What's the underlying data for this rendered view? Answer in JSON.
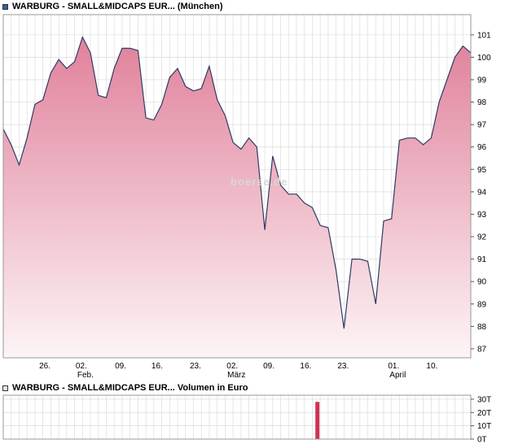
{
  "watermark": "boerse.de",
  "chart_data": [
    {
      "type": "area",
      "title": "WARBURG - SMALL&MIDCAPS EUR... (München)",
      "ylim": [
        86.6,
        101.9
      ],
      "grid": true,
      "legend_position": "top-left",
      "yticks": [
        {
          "v": 87,
          "label": "87"
        },
        {
          "v": 88,
          "label": "88"
        },
        {
          "v": 89,
          "label": "89"
        },
        {
          "v": 90,
          "label": "90"
        },
        {
          "v": 91,
          "label": "91"
        },
        {
          "v": 92,
          "label": "92"
        },
        {
          "v": 93,
          "label": "93"
        },
        {
          "v": 94,
          "label": "94"
        },
        {
          "v": 95,
          "label": "95"
        },
        {
          "v": 96,
          "label": "96"
        },
        {
          "v": 97,
          "label": "97"
        },
        {
          "v": 98,
          "label": "98"
        },
        {
          "v": 99,
          "label": "99"
        },
        {
          "v": 100,
          "label": "100"
        },
        {
          "v": 101,
          "label": "101"
        }
      ],
      "xticks": [
        {
          "pos": 0.089,
          "label": "26."
        },
        {
          "pos": 0.167,
          "label": "02.",
          "sub": "Feb."
        },
        {
          "pos": 0.251,
          "label": "09."
        },
        {
          "pos": 0.329,
          "label": "16."
        },
        {
          "pos": 0.411,
          "label": "23."
        },
        {
          "pos": 0.49,
          "label": "02.",
          "sub": "März"
        },
        {
          "pos": 0.568,
          "label": "09."
        },
        {
          "pos": 0.647,
          "label": "16."
        },
        {
          "pos": 0.727,
          "label": "23."
        },
        {
          "pos": 0.835,
          "label": "01.",
          "sub": "April"
        },
        {
          "pos": 0.917,
          "label": "10."
        }
      ],
      "series": [
        {
          "name": "WARBURG - SMALL&MIDCAPS EUR... (München)",
          "values": [
            96.8,
            96.1,
            95.2,
            96.4,
            97.9,
            98.1,
            99.3,
            99.9,
            99.5,
            99.8,
            100.9,
            100.2,
            98.3,
            98.2,
            99.5,
            100.4,
            100.4,
            100.3,
            97.3,
            97.2,
            97.9,
            99.1,
            99.5,
            98.7,
            98.5,
            98.6,
            99.6,
            98.1,
            97.4,
            96.2,
            95.9,
            96.4,
            96.0,
            92.3,
            95.6,
            94.3,
            93.9,
            93.9,
            93.5,
            93.3,
            92.5,
            92.4,
            90.5,
            87.9,
            91.0,
            91.0,
            90.9,
            89.0,
            92.7,
            92.8,
            96.3,
            96.4,
            96.4,
            96.1,
            96.4,
            98.0,
            99.0,
            100.0,
            100.5,
            100.2
          ]
        }
      ],
      "colors": {
        "swatch": "#2e62a8",
        "line": "#2f3b63",
        "fill_top": "#e0819b",
        "fill_bottom": "#fdf4f6",
        "grid": "#dcdcdc",
        "border": "#999999",
        "tick": "#555555",
        "text": "#000000"
      }
    },
    {
      "type": "bar",
      "title": "WARBURG - SMALL&MIDCAPS EUR... Volumen in Euro",
      "ylim": [
        0,
        33000
      ],
      "grid": true,
      "yticks": [
        {
          "v": 0,
          "label": "0T"
        },
        {
          "v": 10000,
          "label": "10T"
        },
        {
          "v": 20000,
          "label": "20T"
        },
        {
          "v": 30000,
          "label": "30T"
        }
      ],
      "bars": [
        {
          "pos": 0.672,
          "value": 28000
        }
      ],
      "grid_vertical_count": 60,
      "colors": {
        "swatch": "#e6e6e6",
        "bar": "#cc3355",
        "grid": "#dcdcdc",
        "border": "#999999",
        "tick": "#555555",
        "text": "#000000"
      }
    }
  ]
}
